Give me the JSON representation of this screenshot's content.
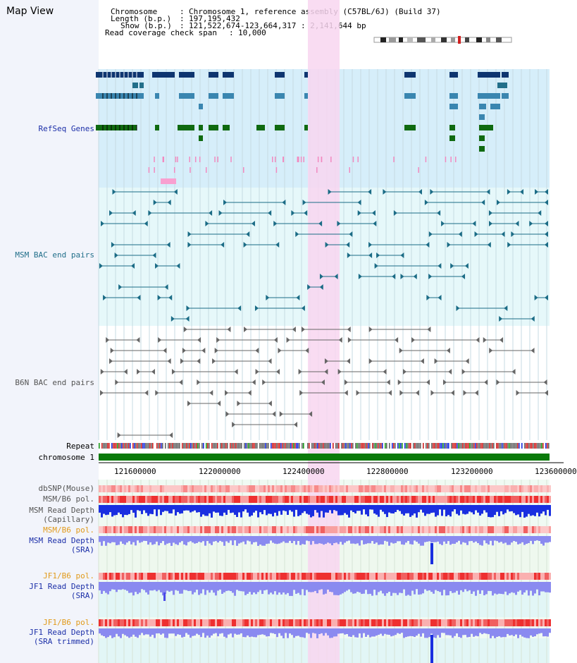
{
  "view_title": "Map View",
  "header": {
    "chromosome_label": "Chromosome",
    "chromosome_value": "Chromosome 1, reference assembly (C57BL/6J) (Build 37)",
    "length_label": "Length (b.p.)",
    "length_value": "197,195,432",
    "show_label": "Show (b.p.)",
    "show_value": "121,522,674-123,664,317 : 2,141,644 bp",
    "coverage_label": "Read coverage check span",
    "coverage_value": "10,000"
  },
  "tracks": {
    "refseq": "RefSeq Genes",
    "msm_bac": "MSM BAC end pairs",
    "b6n_bac": "B6N BAC end pairs",
    "repeat": "Repeat",
    "chromosome": "chromosome 1",
    "dbsnp": "dbSNP(Mouse)",
    "msm_b6_pol_1": "MSM/B6 pol.",
    "msm_read_depth_cap_1": "MSM Read Depth",
    "msm_read_depth_cap_2": "(Capillary)",
    "msm_b6_pol_2": "MSM/B6 pol.",
    "msm_read_depth_sra_1": "MSM Read Depth",
    "msm_read_depth_sra_2": "(SRA)",
    "jf1_b6_pol_1": "JF1/B6 pol.",
    "jf1_read_depth_sra_1": "JF1 Read Depth",
    "jf1_read_depth_sra_2": "(SRA)",
    "jf1_b6_pol_2": "JF1/B6 pol.",
    "jf1_read_depth_trim_1": "JF1 Read Depth",
    "jf1_read_depth_trim_2": "(SRA trimmed)"
  },
  "axis_ticks": [
    "121600000",
    "122000000",
    "122400000",
    "122800000",
    "123200000",
    "123600000"
  ],
  "colors": {
    "refseq_bg": "#d6eefa",
    "bac_bg": "#e6f8fa",
    "highlight": "#f8d6f0",
    "chromosome": "#0a7a0a",
    "depth_blue": "#1a2fe0",
    "depth_light": "#8a8af0"
  }
}
